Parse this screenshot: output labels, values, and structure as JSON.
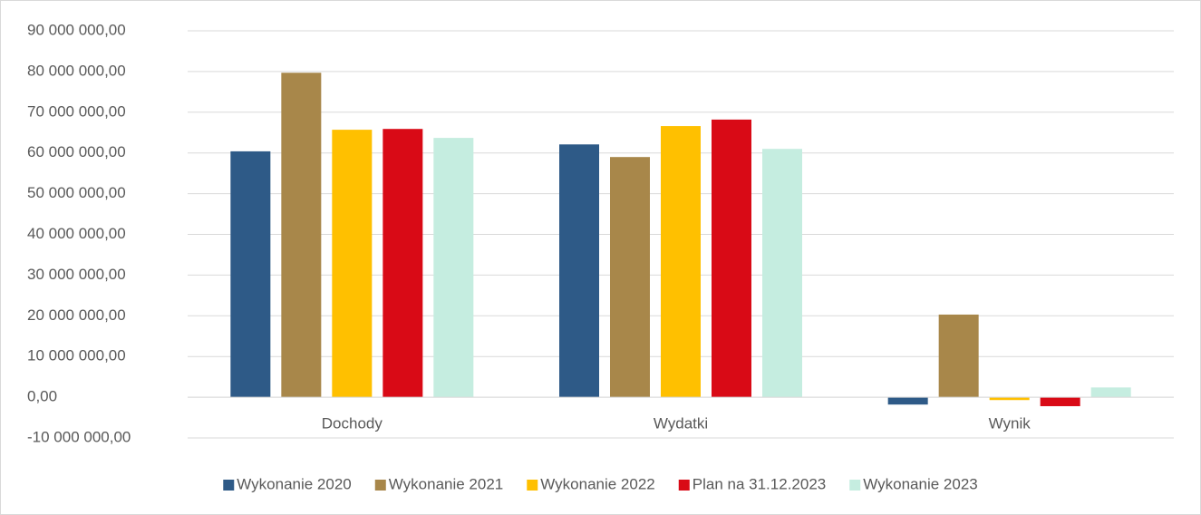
{
  "chart_data": {
    "type": "bar",
    "categories": [
      "Dochody",
      "Wydatki",
      "Wynik"
    ],
    "series": [
      {
        "name": "Wykonanie 2020",
        "color": "#2e5a87",
        "values": [
          60400000,
          62100000,
          -1800000
        ]
      },
      {
        "name": "Wykonanie 2021",
        "color": "#a8874a",
        "values": [
          79700000,
          59000000,
          20300000
        ]
      },
      {
        "name": "Wykonanie 2022",
        "color": "#ffc000",
        "values": [
          65700000,
          66600000,
          -700000
        ]
      },
      {
        "name": "Plan na 31.12.2023",
        "color": "#d90a16",
        "values": [
          65900000,
          68200000,
          -2200000
        ]
      },
      {
        "name": "Wykonanie 2023",
        "color": "#c5ede0",
        "values": [
          63700000,
          61000000,
          2400000
        ]
      }
    ],
    "ylim": [
      -10000000,
      90000000
    ],
    "yticks": [
      {
        "value": -10000000,
        "label": "-10 000 000,00"
      },
      {
        "value": 0,
        "label": "0,00"
      },
      {
        "value": 10000000,
        "label": "10 000 000,00"
      },
      {
        "value": 20000000,
        "label": "20 000 000,00"
      },
      {
        "value": 30000000,
        "label": "30 000 000,00"
      },
      {
        "value": 40000000,
        "label": "40 000 000,00"
      },
      {
        "value": 50000000,
        "label": "50 000 000,00"
      },
      {
        "value": 60000000,
        "label": "60 000 000,00"
      },
      {
        "value": 70000000,
        "label": "70 000 000,00"
      },
      {
        "value": 80000000,
        "label": "80 000 000,00"
      },
      {
        "value": 90000000,
        "label": "90 000 000,00"
      }
    ],
    "grid": true,
    "legend": "bottom"
  }
}
